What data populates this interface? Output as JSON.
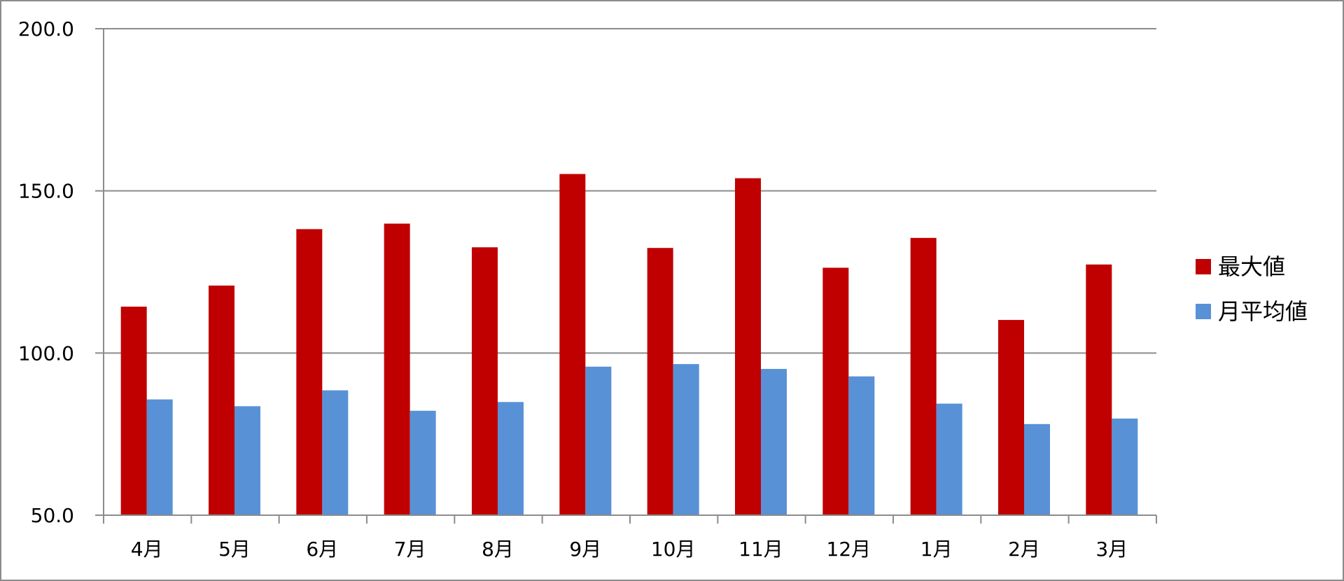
{
  "chart_data": {
    "type": "bar",
    "categories": [
      "4月",
      "5月",
      "6月",
      "7月",
      "8月",
      "9月",
      "10月",
      "11月",
      "12月",
      "1月",
      "2月",
      "3月"
    ],
    "series": [
      {
        "name": "最大値",
        "color": "#c00000",
        "values": [
          114.3,
          120.8,
          138.2,
          139.9,
          132.6,
          155.2,
          132.4,
          153.9,
          126.3,
          135.5,
          110.2,
          127.3
        ]
      },
      {
        "name": "月平均値",
        "color": "#5891d6",
        "values": [
          85.7,
          83.6,
          88.5,
          82.2,
          84.9,
          95.8,
          96.6,
          95.1,
          92.8,
          84.4,
          78.1,
          79.8
        ]
      }
    ],
    "ylim": [
      50,
      200
    ],
    "yticks": [
      "50.0",
      "100.0",
      "150.0",
      "200.0"
    ],
    "title": "",
    "xlabel": "",
    "ylabel": "",
    "grid": true,
    "legend_position": "right"
  }
}
